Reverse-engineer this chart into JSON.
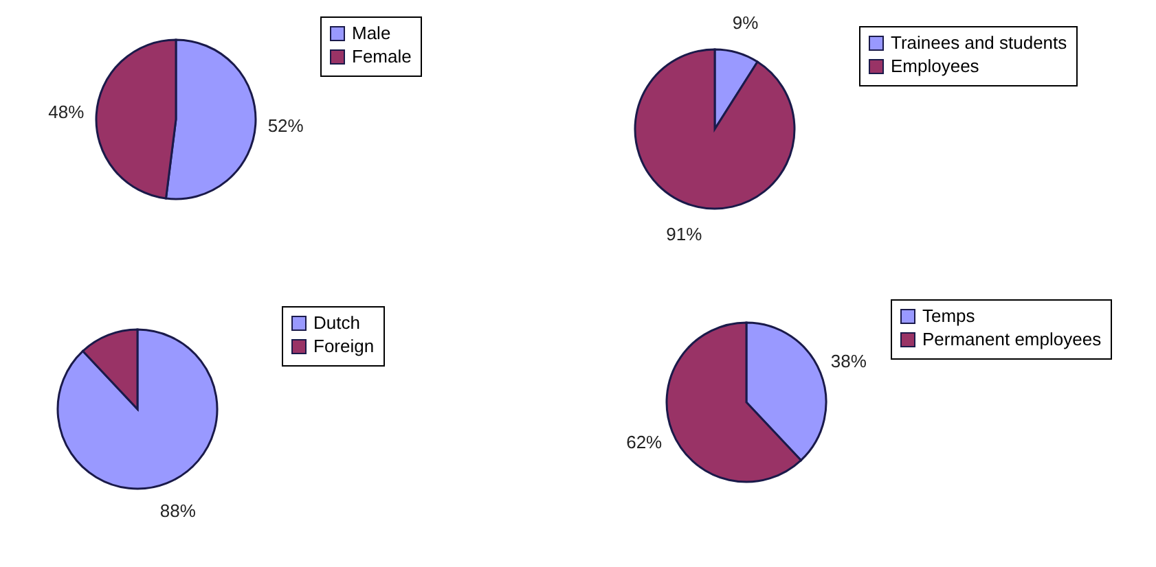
{
  "chart_data": [
    {
      "type": "pie",
      "categories": [
        "Male",
        "Female"
      ],
      "values": [
        52,
        48
      ],
      "colors": [
        "#9999ff",
        "#993366"
      ],
      "value_labels": [
        "52%",
        "48%"
      ],
      "legend": "right"
    },
    {
      "type": "pie",
      "categories": [
        "Trainees and students",
        "Employees"
      ],
      "values": [
        9,
        91
      ],
      "colors": [
        "#9999ff",
        "#993366"
      ],
      "value_labels": [
        "9%",
        "91%"
      ],
      "legend": "right"
    },
    {
      "type": "pie",
      "categories": [
        "Dutch",
        "Foreign"
      ],
      "values": [
        88,
        12
      ],
      "colors": [
        "#9999ff",
        "#993366"
      ],
      "value_labels": [
        "88%",
        null
      ],
      "legend": "right"
    },
    {
      "type": "pie",
      "categories": [
        "Temps",
        "Permanent employees"
      ],
      "values": [
        38,
        62
      ],
      "colors": [
        "#9999ff",
        "#993366"
      ],
      "value_labels": [
        "38%",
        "62%"
      ],
      "legend": "right"
    }
  ]
}
